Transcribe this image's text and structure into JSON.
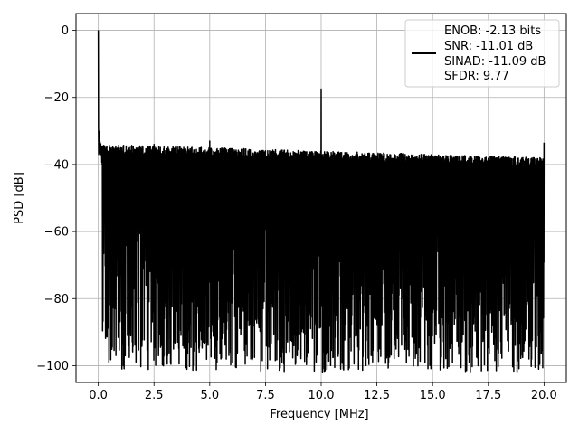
{
  "chart_data": {
    "type": "line",
    "xlabel": "Frequency [MHz]",
    "ylabel": "PSD [dB]",
    "xlim": [
      -1.0,
      21.0
    ],
    "ylim": [
      -105.0,
      5.0
    ],
    "x_ticks": [
      0.0,
      2.5,
      5.0,
      7.5,
      10.0,
      12.5,
      15.0,
      17.5,
      20.0
    ],
    "x_tick_labels": [
      "0.0",
      "2.5",
      "5.0",
      "7.5",
      "10.0",
      "12.5",
      "15.0",
      "17.5",
      "20.0"
    ],
    "y_ticks": [
      0,
      -20,
      -40,
      -60,
      -80,
      -100
    ],
    "y_tick_labels": [
      "0",
      "−20",
      "−40",
      "−60",
      "−80",
      "−100"
    ],
    "grid": true,
    "legend_position": "top-right",
    "series": [
      {
        "name": "",
        "color": "#000000",
        "noise_floor_upper_db_start": -34,
        "noise_floor_upper_db_end": -38,
        "noise_floor_lower_db": -85,
        "min_points": [
          {
            "x": 2.7,
            "y": -97
          },
          {
            "x": 5.5,
            "y": -98
          },
          {
            "x": 12.6,
            "y": -95
          },
          {
            "x": 19.6,
            "y": -100.5
          }
        ],
        "peaks": [
          {
            "x": 0.0,
            "y": 0.0
          },
          {
            "x": 10.0,
            "y": -17.5
          },
          {
            "x": 5.0,
            "y": -33
          },
          {
            "x": 20.0,
            "y": -33.5
          },
          {
            "x": 2.5,
            "y": -34
          }
        ]
      }
    ],
    "legend": {
      "line_color": "#000000",
      "lines": [
        "ENOB: -2.13 bits",
        "SNR: -11.01 dB",
        "SINAD: -11.09 dB",
        "SFDR: 9.77"
      ]
    }
  }
}
